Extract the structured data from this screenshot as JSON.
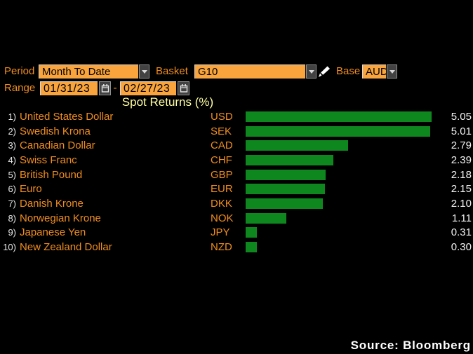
{
  "colors": {
    "background": "#000000",
    "field_orange": "#f9a43c",
    "label_orange": "#f18d1f",
    "title_yellow": "#ffffa2",
    "bar_green": "#0f871f",
    "value_white": "#f2f2f2",
    "button_gray": "#424242",
    "button_border": "#909090"
  },
  "controls": {
    "period": {
      "label": "Period",
      "value": "Month To Date"
    },
    "basket": {
      "label": "Basket",
      "value": "G10"
    },
    "base": {
      "label": "Base",
      "value": "AUD"
    },
    "range": {
      "label": "Range",
      "start": "01/31/23",
      "separator": "-",
      "end": "02/27/23"
    }
  },
  "chart_data": {
    "type": "bar",
    "orientation": "horizontal",
    "title": "Spot Returns (%)",
    "xlim": [
      0,
      5.05
    ],
    "grid": false,
    "legend": false,
    "bar_color": "#0f871f",
    "categories": [
      "USD",
      "SEK",
      "CAD",
      "CHF",
      "GBP",
      "EUR",
      "DKK",
      "NOK",
      "JPY",
      "NZD"
    ],
    "values": [
      5.05,
      5.01,
      2.79,
      2.39,
      2.18,
      2.15,
      2.1,
      1.11,
      0.31,
      0.3
    ],
    "rows": [
      {
        "rank": "1)",
        "name": "United States Dollar",
        "code": "USD",
        "value": "5.05"
      },
      {
        "rank": "2)",
        "name": "Swedish Krona",
        "code": "SEK",
        "value": "5.01"
      },
      {
        "rank": "3)",
        "name": "Canadian Dollar",
        "code": "CAD",
        "value": "2.79"
      },
      {
        "rank": "4)",
        "name": "Swiss Franc",
        "code": "CHF",
        "value": "2.39"
      },
      {
        "rank": "5)",
        "name": "British Pound",
        "code": "GBP",
        "value": "2.18"
      },
      {
        "rank": "6)",
        "name": "Euro",
        "code": "EUR",
        "value": "2.15"
      },
      {
        "rank": "7)",
        "name": "Danish Krone",
        "code": "DKK",
        "value": "2.10"
      },
      {
        "rank": "8)",
        "name": "Norwegian Krone",
        "code": "NOK",
        "value": "1.11"
      },
      {
        "rank": "9)",
        "name": "Japanese Yen",
        "code": "JPY",
        "value": "0.31"
      },
      {
        "rank": "10)",
        "name": "New Zealand Dollar",
        "code": "NZD",
        "value": "0.30"
      }
    ]
  },
  "footer": {
    "source": "Source: Bloomberg"
  }
}
